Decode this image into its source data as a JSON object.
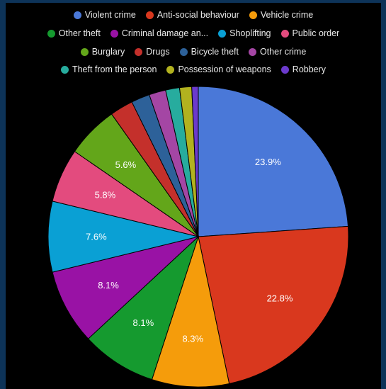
{
  "chart_data": {
    "type": "pie",
    "legend_position": "top",
    "slices": [
      {
        "name": "Violent crime",
        "value": 23.9,
        "label": "23.9%",
        "color": "#4a78d8"
      },
      {
        "name": "Anti-social behaviour",
        "value": 22.8,
        "label": "22.8%",
        "color": "#d9381e"
      },
      {
        "name": "Vehicle crime",
        "value": 8.3,
        "label": "8.3%",
        "color": "#f59c0b"
      },
      {
        "name": "Other theft",
        "value": 8.1,
        "label": "8.1%",
        "color": "#159a2f"
      },
      {
        "name": "Criminal damage an...",
        "value": 8.1,
        "label": "8.1%",
        "color": "#9912a5"
      },
      {
        "name": "Shoplifting",
        "value": 7.6,
        "label": "7.6%",
        "color": "#0aa0d4"
      },
      {
        "name": "Public order",
        "value": 5.8,
        "label": "5.8%",
        "color": "#e34b7e"
      },
      {
        "name": "Burglary",
        "value": 5.6,
        "label": "5.6%",
        "color": "#63a61a"
      },
      {
        "name": "Drugs",
        "value": 2.5,
        "label": "",
        "color": "#c4302b"
      },
      {
        "name": "Bicycle theft",
        "value": 2.0,
        "label": "",
        "color": "#2d6199"
      },
      {
        "name": "Other crime",
        "value": 1.8,
        "label": "",
        "color": "#a446a4"
      },
      {
        "name": "Theft from the person",
        "value": 1.5,
        "label": "",
        "color": "#27ac9e"
      },
      {
        "name": "Possession of weapons",
        "value": 1.3,
        "label": "",
        "color": "#b2b21f"
      },
      {
        "name": "Robbery",
        "value": 0.7,
        "label": "",
        "color": "#6b3acd"
      }
    ],
    "legend_rows": [
      [
        "Violent crime",
        "Anti-social behaviour",
        "Vehicle crime"
      ],
      [
        "Other theft",
        "Criminal damage an...",
        "Shoplifting",
        "Public order"
      ],
      [
        "Burglary",
        "Drugs",
        "Bicycle theft",
        "Other crime"
      ],
      [
        "Theft from the person",
        "Possession of weapons",
        "Robbery"
      ]
    ]
  }
}
